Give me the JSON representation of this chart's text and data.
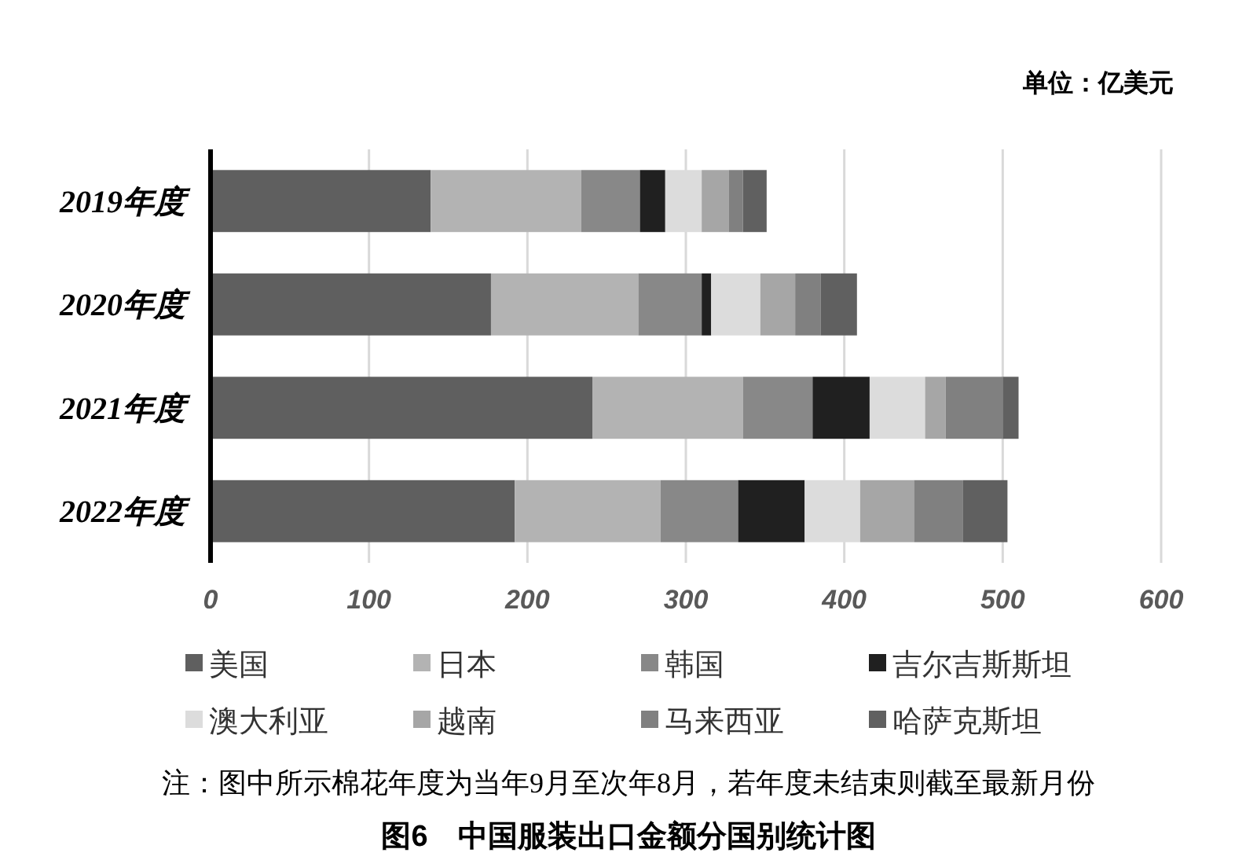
{
  "chart_data": {
    "type": "bar",
    "orientation": "horizontal",
    "stacked": true,
    "title": "图6　中国服装出口金额分国别统计图",
    "annotations": [
      "单位：亿美元",
      "注：图中所示棉花年度为当年9月至次年8月，若年度未结束则截至最新月份"
    ],
    "categories": [
      "2019年度",
      "2020年度",
      "2021年度",
      "2022年度"
    ],
    "series": [
      {
        "name": "美国",
        "color": "#5f5f5f",
        "values": [
          139,
          177,
          241,
          192
        ]
      },
      {
        "name": "日本",
        "color": "#b3b3b3",
        "values": [
          95,
          93,
          95,
          92
        ]
      },
      {
        "name": "韩国",
        "color": "#888888",
        "values": [
          37,
          40,
          44,
          49
        ]
      },
      {
        "name": "吉尔吉斯斯坦",
        "color": "#202020",
        "values": [
          16,
          6,
          36,
          42
        ]
      },
      {
        "name": "澳大利亚",
        "color": "#dcdcdc",
        "values": [
          23,
          31,
          35,
          35
        ]
      },
      {
        "name": "越南",
        "color": "#a6a6a6",
        "values": [
          17,
          22,
          13,
          34
        ]
      },
      {
        "name": "马来西亚",
        "color": "#808080",
        "values": [
          9,
          16,
          36,
          31
        ]
      },
      {
        "name": "哈萨克斯坦",
        "color": "#606060",
        "values": [
          15,
          23,
          10,
          28
        ]
      }
    ],
    "xlim": [
      0,
      600
    ],
    "xticks": [
      0,
      100,
      200,
      300,
      400,
      500,
      600
    ],
    "grid": "x",
    "legend": "bottom"
  }
}
